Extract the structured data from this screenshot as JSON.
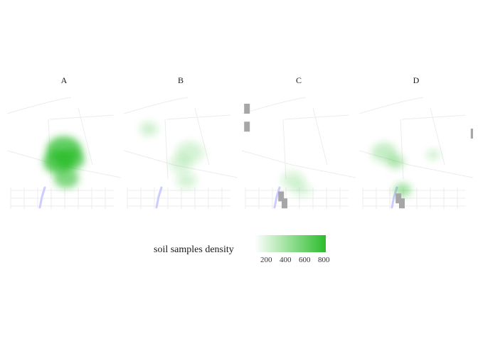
{
  "facets": [
    {
      "label": "A",
      "blobs": [
        [
          0.5,
          0.48,
          0.28,
          0.85
        ],
        [
          0.45,
          0.58,
          0.24,
          0.9
        ],
        [
          0.56,
          0.56,
          0.22,
          0.8
        ],
        [
          0.52,
          0.72,
          0.2,
          0.7
        ]
      ],
      "nodata": []
    },
    {
      "label": "B",
      "blobs": [
        [
          0.22,
          0.3,
          0.14,
          0.25
        ],
        [
          0.58,
          0.5,
          0.22,
          0.22
        ],
        [
          0.5,
          0.6,
          0.18,
          0.2
        ],
        [
          0.55,
          0.74,
          0.16,
          0.22
        ]
      ],
      "nodata": []
    },
    {
      "label": "C",
      "blobs": [
        [
          0.45,
          0.74,
          0.18,
          0.22
        ],
        [
          0.53,
          0.82,
          0.14,
          0.18
        ]
      ],
      "nodata": [
        [
          0.02,
          0.1
        ],
        [
          0.02,
          0.28
        ],
        [
          0.32,
          0.98
        ],
        [
          0.35,
          1.05
        ]
      ]
    },
    {
      "label": "D",
      "blobs": [
        [
          0.22,
          0.5,
          0.2,
          0.32
        ],
        [
          0.32,
          0.58,
          0.14,
          0.4
        ],
        [
          0.38,
          0.82,
          0.14,
          0.5
        ],
        [
          0.65,
          0.52,
          0.1,
          0.25
        ]
      ],
      "nodata": [
        [
          0.32,
          1.0
        ],
        [
          0.35,
          1.05
        ],
        [
          0.98,
          0.35
        ]
      ]
    }
  ],
  "legend": {
    "title": "soil samples density",
    "ticks": [
      200,
      400,
      600,
      800
    ],
    "min": 80,
    "max": 820,
    "color_low": "#ffffff",
    "color_high": "#2bbd2b"
  },
  "colors": {
    "road": "#ececec",
    "river": "#ccccff",
    "nodata": "#a6a6a6"
  }
}
